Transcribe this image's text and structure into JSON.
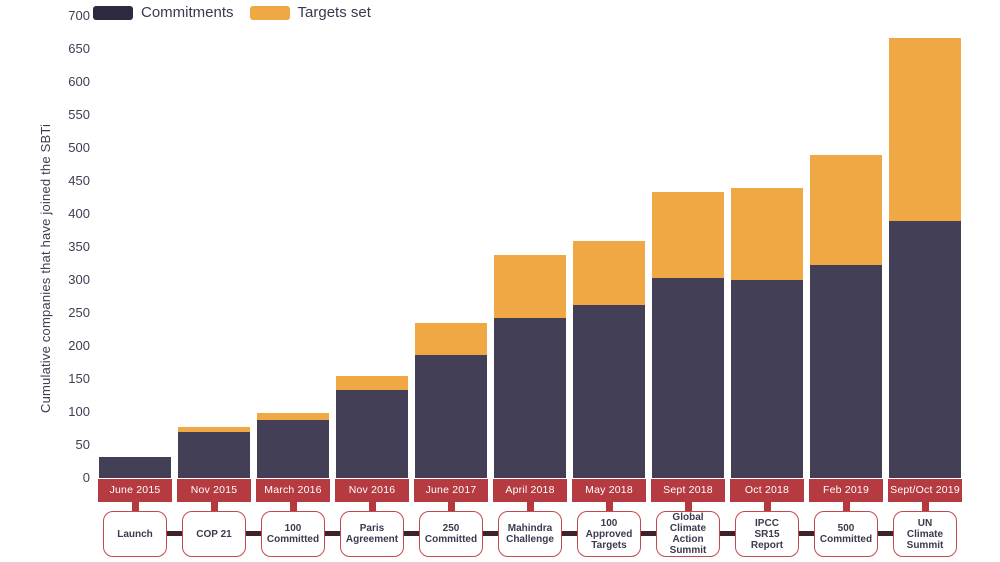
{
  "legend": {
    "items": [
      {
        "label": "Commitments",
        "color": "#2b2a3e"
      },
      {
        "label": "Targets set",
        "color": "#f0a844"
      }
    ]
  },
  "y_axis": {
    "label": "Cumulative companies that have joined the SBTi",
    "ticks": [
      700,
      650,
      600,
      550,
      500,
      450,
      400,
      350,
      300,
      250,
      200,
      150,
      100,
      50,
      0
    ]
  },
  "colors": {
    "commitments_bar": "#423f56",
    "targets_bar": "#f0a844",
    "date_box": "#b53b40",
    "stem": "#b5383e",
    "milestone_border": "#c4494e",
    "milestone_text": "#3b3a4f",
    "connector": "#3d2226",
    "axis_text": "#3e3d52"
  },
  "chart_data": {
    "type": "bar",
    "stacked": true,
    "title": "",
    "xlabel": "",
    "ylabel": "Cumulative companies that have joined the SBTi",
    "ylim": [
      0,
      700
    ],
    "grid": false,
    "legend_position": "top-left",
    "categories": [
      "June 2015",
      "Nov 2015",
      "March 2016",
      "Nov 2016",
      "June 2017",
      "April 2018",
      "May 2018",
      "Sept 2018",
      "Oct 2018",
      "Feb 2019",
      "Sept/Oct 2019"
    ],
    "milestones": [
      "Launch",
      "COP 21",
      "100\nCommitted",
      "Paris\nAgreement",
      "250\nCommitted",
      "Mahindra\nChallenge",
      "100\nApproved\nTargets",
      "Global\nClimate\nAction\nSummit",
      "IPCC\nSR15\nReport",
      "500\nCommitted",
      "UN\nClimate\nSummit"
    ],
    "series": [
      {
        "name": "Commitments",
        "color": "#423f56",
        "values": [
          32,
          70,
          88,
          133,
          187,
          243,
          262,
          303,
          300,
          323,
          390
        ]
      },
      {
        "name": "Targets set",
        "color": "#f0a844",
        "values": [
          0,
          7,
          10,
          22,
          48,
          95,
          97,
          130,
          140,
          167,
          277
        ]
      }
    ],
    "totals": [
      32,
      77,
      98,
      155,
      235,
      338,
      359,
      433,
      440,
      490,
      667
    ]
  }
}
